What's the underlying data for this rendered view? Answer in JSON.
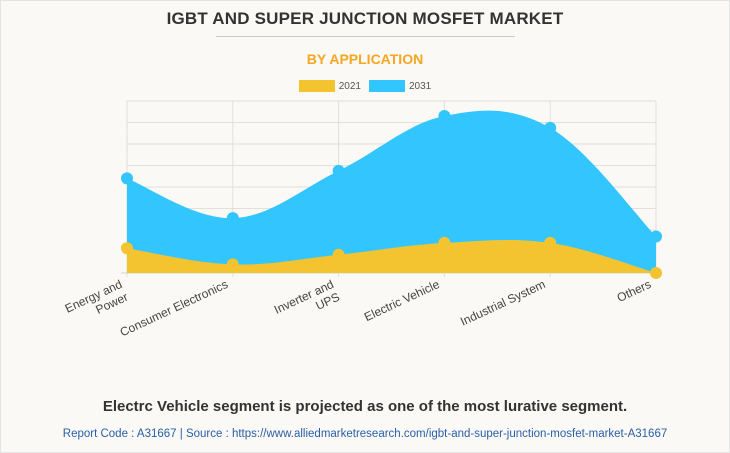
{
  "chart_data": {
    "type": "area",
    "title": "IGBT AND SUPER JUNCTION MOSFET MARKET",
    "subtitle": "BY APPLICATION",
    "xlabel": "",
    "ylabel": "",
    "ylim": [
      0,
      8
    ],
    "y_units": "relative (no axis values shown)",
    "grid": true,
    "legend_position": "top-center",
    "categories": [
      [
        "Energy and",
        "Power"
      ],
      [
        "Consumer Electronics"
      ],
      [
        "Inverter and",
        "UPS"
      ],
      [
        "Electric Vehicle"
      ],
      [
        "Industrial System"
      ],
      [
        "Others"
      ]
    ],
    "series": [
      {
        "name": "2031",
        "color": "#33c5fd",
        "values": [
          4.4,
          2.55,
          4.75,
          7.3,
          6.75,
          1.7
        ]
      },
      {
        "name": "2021",
        "color": "#f4c430",
        "values": [
          1.15,
          0.4,
          0.85,
          1.4,
          1.4,
          0.0
        ]
      }
    ]
  },
  "legend": [
    {
      "label": "2021",
      "color": "#f4c430"
    },
    {
      "label": "2031",
      "color": "#33c5fd"
    }
  ],
  "footer": {
    "note": "Electrc Vehicle segment is projected as one of the most lurative segment.",
    "source": "Report Code : A31667  |  Source : https://www.alliedmarketresearch.com/igbt-and-super-junction-mosfet-market-A31667"
  }
}
